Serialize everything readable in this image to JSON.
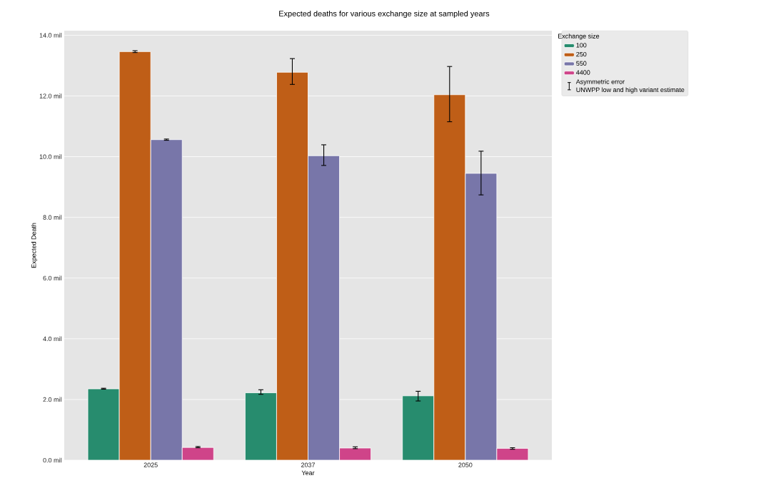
{
  "chart_data": {
    "type": "bar",
    "title": "Expected deaths for various exchange size at sampled years",
    "xlabel": "Year",
    "ylabel": "Expected Death",
    "legend_title": "Exchange size",
    "categories": [
      "2025",
      "2037",
      "2050"
    ],
    "series": [
      {
        "name": "100",
        "color": "#278c6e",
        "values": [
          2.35,
          2.22,
          2.12
        ],
        "errors": [
          [
            2.34,
            2.37
          ],
          [
            2.17,
            2.32
          ],
          [
            1.95,
            2.27
          ]
        ]
      },
      {
        "name": "250",
        "color": "#bf5e17",
        "values": [
          13.46,
          12.78,
          12.04
        ],
        "errors": [
          [
            13.43,
            13.49
          ],
          [
            12.38,
            13.23
          ],
          [
            11.15,
            12.97
          ]
        ]
      },
      {
        "name": "550",
        "color": "#7876a9",
        "values": [
          10.56,
          10.03,
          9.45
        ],
        "errors": [
          [
            10.54,
            10.58
          ],
          [
            9.71,
            10.39
          ],
          [
            8.74,
            10.18
          ]
        ]
      },
      {
        "name": "4400",
        "color": "#cf4489",
        "values": [
          0.42,
          0.4,
          0.39
        ],
        "errors": [
          [
            0.41,
            0.45
          ],
          [
            0.38,
            0.44
          ],
          [
            0.36,
            0.41
          ]
        ]
      }
    ],
    "annotations": [
      "Asymmetric error",
      "UNWPP low and high variant estimate"
    ],
    "ylim": [
      0,
      14.15
    ],
    "yticks": [
      {
        "value": 0,
        "label": "0.0 mil"
      },
      {
        "value": 2,
        "label": "2.0 mil"
      },
      {
        "value": 4,
        "label": "4.0 mil"
      },
      {
        "value": 6,
        "label": "6.0 mil"
      },
      {
        "value": 8,
        "label": "8.0 mil"
      },
      {
        "value": 10,
        "label": "10.0 mil"
      },
      {
        "value": 12,
        "label": "12.0 mil"
      },
      {
        "value": 14,
        "label": "14.0 mil"
      }
    ],
    "grid": "y",
    "legend": "top right"
  }
}
